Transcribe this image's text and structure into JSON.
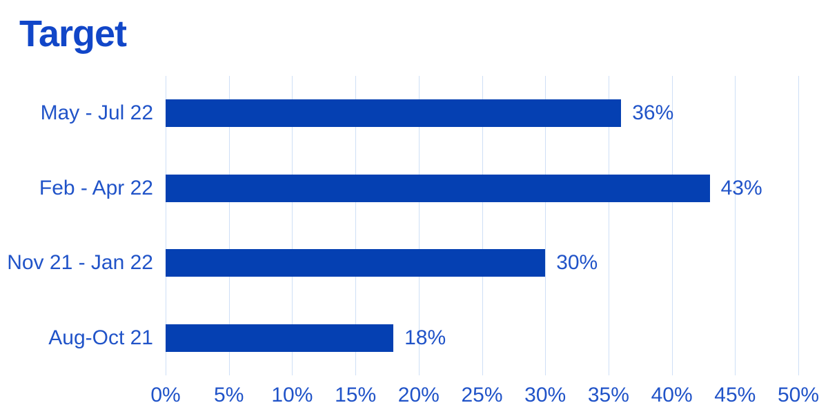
{
  "title": "Target",
  "colors": {
    "background": "#ffffff",
    "bar": "#0540b2",
    "title_text": "#1146c8",
    "label_text": "#2053c8",
    "gridline": "#cedff6"
  },
  "chart_data": {
    "type": "bar",
    "orientation": "horizontal",
    "title": "Target",
    "categories": [
      "May - Jul 22",
      "Feb - Apr 22",
      "Nov 21 - Jan 22",
      "Aug-Oct 21"
    ],
    "values": [
      36,
      43,
      30,
      18
    ],
    "value_labels": [
      "36%",
      "43%",
      "30%",
      "18%"
    ],
    "xlabel": "",
    "ylabel": "",
    "xlim": [
      0,
      50
    ],
    "x_ticks": [
      0,
      5,
      10,
      15,
      20,
      25,
      30,
      35,
      40,
      45,
      50
    ],
    "x_tick_labels": [
      "0%",
      "5%",
      "10%",
      "15%",
      "20%",
      "25%",
      "30%",
      "35%",
      "40%",
      "45%",
      "50%"
    ],
    "grid": "vertical-gridlines",
    "legend": "none"
  }
}
